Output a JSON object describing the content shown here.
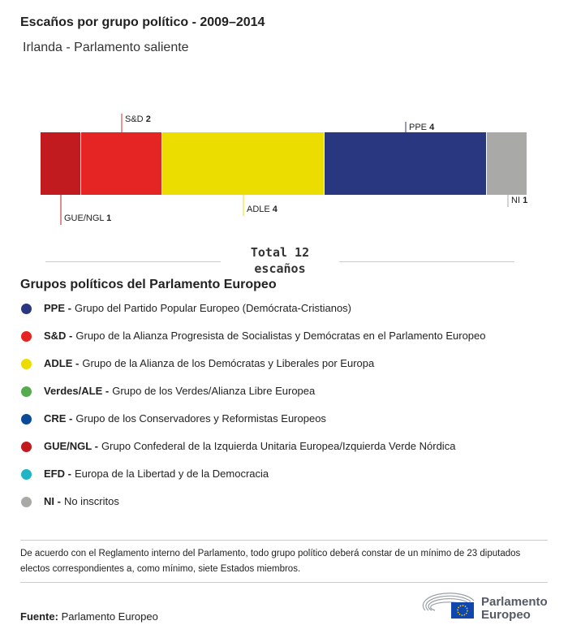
{
  "header": {
    "title": "Escaños por grupo político - 2009–2014",
    "subtitle": "Irlanda - Parlamento saliente"
  },
  "chart_data": {
    "type": "bar",
    "orientation": "horizontal-stacked",
    "categories": [
      "GUE/NGL",
      "S&D",
      "ADLE",
      "PPE",
      "NI"
    ],
    "values": [
      1,
      2,
      4,
      4,
      1
    ],
    "colors": [
      "#c11b1f",
      "#e52523",
      "#ecdd00",
      "#283780",
      "#a9a9a8"
    ],
    "label_positions": [
      "below",
      "above",
      "below",
      "above",
      "below"
    ],
    "total": 12
  },
  "total": {
    "line1": "Total 12",
    "line2": "escaños"
  },
  "legend": {
    "title": "Grupos políticos del Parlamento Europeo",
    "items": [
      {
        "abbr": "PPE -",
        "desc": "Grupo del Partido Popular Europeo (Demócrata-Cristianos)",
        "color": "#283780"
      },
      {
        "abbr": "S&D -",
        "desc": "Grupo de la Alianza Progresista de Socialistas y Demócratas en el Parlamento Europeo",
        "color": "#e52523"
      },
      {
        "abbr": "ADLE -",
        "desc": "Grupo de la Alianza de los Demócratas y Liberales por Europa",
        "color": "#ecdd00"
      },
      {
        "abbr": "Verdes/ALE -",
        "desc": "Grupo de los Verdes/Alianza Libre Europea",
        "color": "#57ab4f"
      },
      {
        "abbr": "CRE -",
        "desc": "Grupo de los Conservadores y Reformistas Europeos",
        "color": "#0a4a96"
      },
      {
        "abbr": "GUE/NGL -",
        "desc": "Grupo Confederal de la Izquierda Unitaria Europea/Izquierda Verde Nórdica",
        "color": "#c11b1f"
      },
      {
        "abbr": "EFD -",
        "desc": "Europa de la Libertad y de la Democracia",
        "color": "#1fb5c4"
      },
      {
        "abbr": "NI -",
        "desc": "No inscritos",
        "color": "#a9a9a8"
      }
    ]
  },
  "note": "De acuerdo con el Reglamento interno del Parlamento, todo grupo político deberá constar de un mínimo de 23 diputados electos correspondientes a, como mínimo, siete Estados miembros.",
  "source": {
    "label": "Fuente:",
    "value": "Parlamento Europeo"
  },
  "logo": {
    "line1": "Parlamento",
    "line2": "Europeo"
  }
}
